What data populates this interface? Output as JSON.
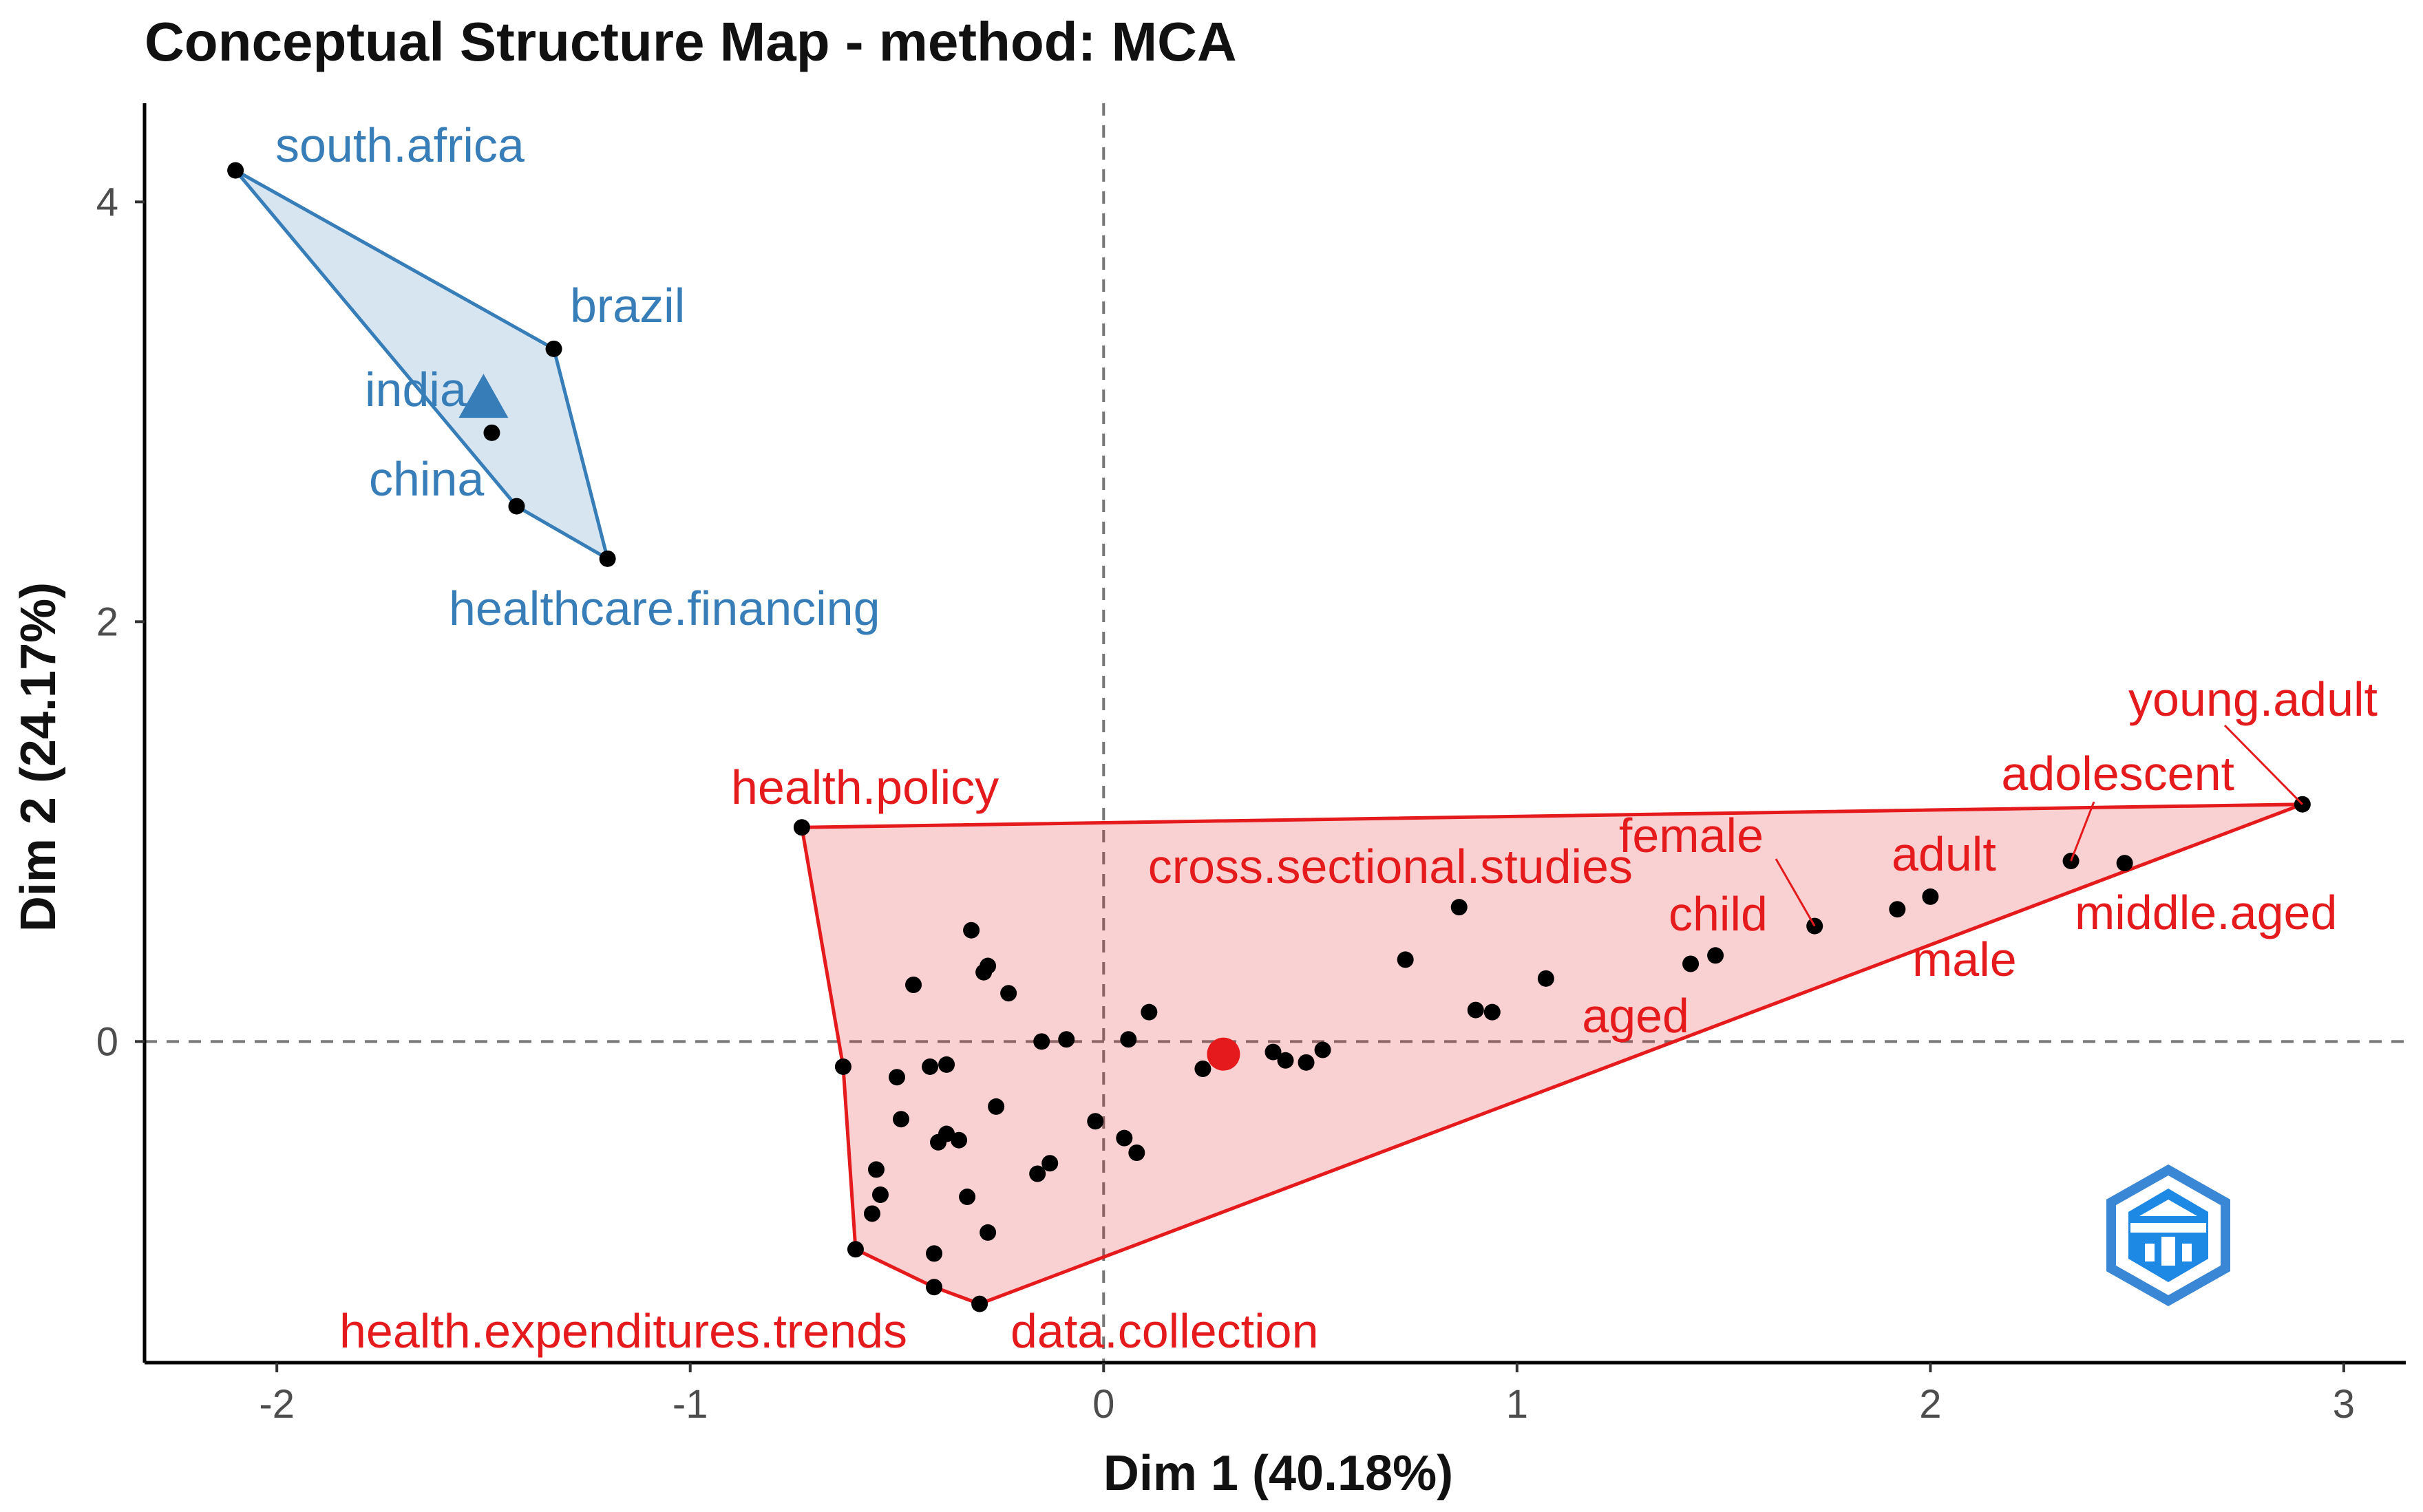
{
  "chart_data": {
    "type": "scatter",
    "title": "Conceptual Structure Map - method: MCA",
    "xlabel": "Dim 1 (40.18%)",
    "ylabel": "Dim 2 (24.17%)",
    "xlim": [
      -2.32,
      3.15
    ],
    "ylim": [
      -1.53,
      4.47
    ],
    "x_ticks": [
      -2,
      -1,
      0,
      1,
      2,
      3
    ],
    "y_ticks": [
      0,
      2,
      4
    ],
    "x_tick_labels": [
      "-2",
      "-1",
      "0",
      "1",
      "2",
      "3"
    ],
    "y_tick_labels": [
      "0",
      "2",
      "4"
    ],
    "reference_lines": {
      "x": 0,
      "y": 0,
      "style": "dashed"
    },
    "grid": false,
    "colors": {
      "cluster_blue": "#377eb8",
      "cluster_red": "#e41a1c",
      "points": "#000000"
    },
    "clusters": [
      {
        "color": "#377eb8",
        "centroid": [
          -1.5,
          3.05
        ],
        "hull": [
          [
            -2.1,
            4.15
          ],
          [
            -1.33,
            3.3
          ],
          [
            -1.2,
            2.3
          ],
          [
            -1.42,
            2.55
          ],
          [
            -2.1,
            4.15
          ]
        ],
        "points": [
          {
            "label": "south.africa",
            "x": -2.1,
            "y": 4.15
          },
          {
            "label": "brazil",
            "x": -1.33,
            "y": 3.3
          },
          {
            "label": "india",
            "x": -1.48,
            "y": 2.9
          },
          {
            "label": "china",
            "x": -1.42,
            "y": 2.55
          },
          {
            "label": "healthcare.financing",
            "x": -1.2,
            "y": 2.3
          }
        ]
      },
      {
        "color": "#e41a1c",
        "centroid": [
          0.29,
          -0.06
        ],
        "hull": [
          [
            -0.73,
            1.02
          ],
          [
            2.9,
            1.13
          ],
          [
            -0.3,
            -1.25
          ],
          [
            -0.41,
            -1.17
          ],
          [
            -0.6,
            -0.99
          ],
          [
            -0.63,
            -0.12
          ],
          [
            -0.73,
            1.02
          ]
        ],
        "points": [
          {
            "label": "health.policy",
            "x": -0.73,
            "y": 1.02
          },
          {
            "label": "young.adult",
            "x": 2.9,
            "y": 1.13
          },
          {
            "label": "adolescent",
            "x": 2.34,
            "y": 0.86
          },
          {
            "label": "middle.aged",
            "x": 2.47,
            "y": 0.85
          },
          {
            "label": "adult",
            "x": 2.0,
            "y": 0.69
          },
          {
            "label": "male",
            "x": 1.92,
            "y": 0.63
          },
          {
            "label": "female",
            "x": 1.72,
            "y": 0.55
          },
          {
            "label": "child",
            "x": 1.48,
            "y": 0.41
          },
          {
            "label": "aged",
            "x": 1.42,
            "y": 0.37
          },
          {
            "label": "cross.sectional.studies",
            "x": 0.86,
            "y": 0.64
          },
          {
            "label": "health.expenditures.trends",
            "x": -0.6,
            "y": -0.99
          },
          {
            "label": "data.collection",
            "x": -0.3,
            "y": -1.25
          },
          {
            "label": "",
            "x": -0.63,
            "y": -0.12
          },
          {
            "label": "",
            "x": -0.41,
            "y": -1.17
          },
          {
            "label": "",
            "x": -0.46,
            "y": 0.27
          },
          {
            "label": "",
            "x": -0.32,
            "y": 0.53
          },
          {
            "label": "",
            "x": -0.29,
            "y": 0.33
          },
          {
            "label": "",
            "x": -0.28,
            "y": 0.36
          },
          {
            "label": "",
            "x": -0.23,
            "y": 0.23
          },
          {
            "label": "",
            "x": -0.15,
            "y": 0.0
          },
          {
            "label": "",
            "x": -0.09,
            "y": 0.01
          },
          {
            "label": "",
            "x": -0.5,
            "y": -0.17
          },
          {
            "label": "",
            "x": -0.42,
            "y": -0.12
          },
          {
            "label": "",
            "x": -0.38,
            "y": -0.11
          },
          {
            "label": "",
            "x": -0.49,
            "y": -0.37
          },
          {
            "label": "",
            "x": -0.4,
            "y": -0.48
          },
          {
            "label": "",
            "x": -0.38,
            "y": -0.44
          },
          {
            "label": "",
            "x": -0.35,
            "y": -0.47
          },
          {
            "label": "",
            "x": -0.26,
            "y": -0.31
          },
          {
            "label": "",
            "x": -0.55,
            "y": -0.61
          },
          {
            "label": "",
            "x": -0.54,
            "y": -0.73
          },
          {
            "label": "",
            "x": -0.56,
            "y": -0.82
          },
          {
            "label": "",
            "x": -0.33,
            "y": -0.74
          },
          {
            "label": "",
            "x": -0.28,
            "y": -0.91
          },
          {
            "label": "",
            "x": -0.41,
            "y": -1.01
          },
          {
            "label": "",
            "x": -0.16,
            "y": -0.63
          },
          {
            "label": "",
            "x": -0.13,
            "y": -0.58
          },
          {
            "label": "",
            "x": -0.02,
            "y": -0.38
          },
          {
            "label": "",
            "x": 0.05,
            "y": -0.46
          },
          {
            "label": "",
            "x": 0.08,
            "y": -0.53
          },
          {
            "label": "",
            "x": 0.06,
            "y": 0.01
          },
          {
            "label": "",
            "x": 0.11,
            "y": 0.14
          },
          {
            "label": "",
            "x": 0.24,
            "y": -0.13
          },
          {
            "label": "",
            "x": 0.41,
            "y": -0.05
          },
          {
            "label": "",
            "x": 0.44,
            "y": -0.09
          },
          {
            "label": "",
            "x": 0.49,
            "y": -0.1
          },
          {
            "label": "",
            "x": 0.53,
            "y": -0.04
          },
          {
            "label": "",
            "x": 0.73,
            "y": 0.39
          },
          {
            "label": "",
            "x": 0.9,
            "y": 0.15
          },
          {
            "label": "",
            "x": 0.94,
            "y": 0.14
          },
          {
            "label": "",
            "x": 1.07,
            "y": 0.3
          }
        ]
      }
    ]
  }
}
